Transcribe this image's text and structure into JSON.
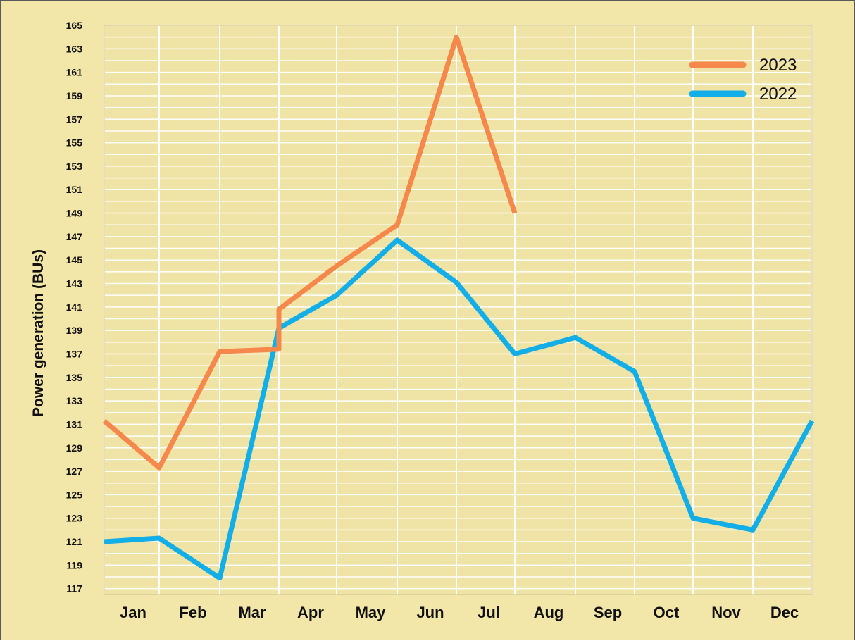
{
  "chart_data": {
    "type": "line",
    "title": "",
    "xlabel": "",
    "ylabel": "Power generation (BUs)",
    "categories": [
      "Jan",
      "Feb",
      "Mar",
      "Apr",
      "May",
      "Jun",
      "Jul",
      "Aug",
      "Sep",
      "Oct",
      "Nov",
      "Dec"
    ],
    "y_ticks": [
      117,
      119,
      121,
      123,
      125,
      127,
      129,
      131,
      133,
      135,
      137,
      139,
      141,
      143,
      145,
      147,
      149,
      151,
      153,
      155,
      157,
      159,
      161,
      163,
      165
    ],
    "ylim": [
      116.5,
      165
    ],
    "grid": true,
    "legend_position": "top-right",
    "series": [
      {
        "name": "2023",
        "color": "#f5884a",
        "x": [
          "Jan",
          "Jan-Feb",
          "Feb-Mar",
          "Mar-Apr",
          "Apr",
          "Apr-May",
          "May-Jun",
          "Jun-Jul",
          "Jul-Aug"
        ],
        "values": [
          131.3,
          127.3,
          137.2,
          137.4,
          140.8,
          144.5,
          148.0,
          164.0,
          149.0
        ]
      },
      {
        "name": "2022",
        "color": "#12aee8",
        "x": [
          "Jan",
          "Jan-Feb",
          "Feb-Mar",
          "Mar-Apr",
          "Apr-May",
          "May-Jun",
          "Jun-Jul",
          "Jul-Aug",
          "Aug-Sep",
          "Sep-Oct",
          "Oct-Nov",
          "Nov-Dec",
          "Dec"
        ],
        "values": [
          121.0,
          121.3,
          117.9,
          139.2,
          142.0,
          146.7,
          143.1,
          137.0,
          138.4,
          135.5,
          123.0,
          122.0,
          131.3
        ]
      }
    ]
  }
}
